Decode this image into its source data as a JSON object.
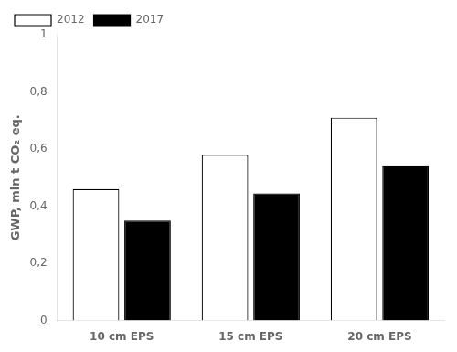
{
  "chart_data": {
    "type": "bar",
    "ylabel": "GWP, mln t CO₂ eq.",
    "categories": [
      "10 cm EPS",
      "15 cm EPS",
      "20 cm EPS"
    ],
    "series": [
      {
        "name": "2012",
        "color": "#ffffff",
        "values": [
          0.46,
          0.58,
          0.71
        ]
      },
      {
        "name": "2017",
        "color": "#000000",
        "values": [
          0.35,
          0.445,
          0.54
        ]
      }
    ],
    "ylim": [
      0,
      1.0
    ],
    "yticks": [
      0,
      {
        "value": 0.2,
        "label": "0,2"
      },
      {
        "value": 0.4,
        "label": "0,4"
      },
      {
        "value": 0.6,
        "label": "0,6"
      },
      {
        "value": 0.8,
        "label": "0,8"
      },
      1
    ],
    "grid": false,
    "legend": "upper left"
  }
}
